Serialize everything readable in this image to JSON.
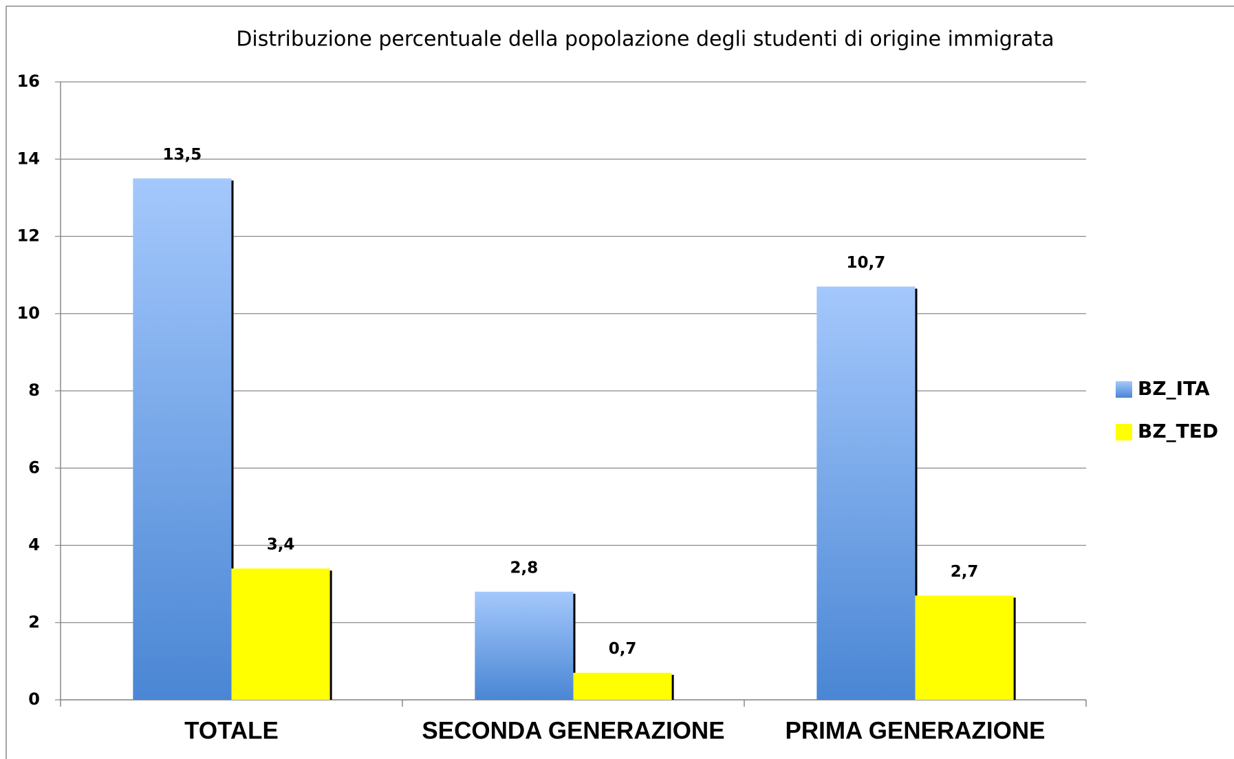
{
  "chart_data": {
    "type": "bar",
    "title": "Distribuzione percentuale della popolazione degli studenti di origine immigrata",
    "categories": [
      "TOTALE",
      "SECONDA GENERAZIONE",
      "PRIMA GENERAZIONE"
    ],
    "series": [
      {
        "name": "BZ_ITA",
        "color": "#6a9fe6",
        "values": [
          13.5,
          2.8,
          10.7
        ],
        "value_labels": [
          "13,5",
          "2,8",
          "10,7"
        ]
      },
      {
        "name": "BZ_TED",
        "color": "#ffff00",
        "values": [
          3.4,
          0.7,
          2.7
        ],
        "value_labels": [
          "3,4",
          "0,7",
          "2,7"
        ]
      }
    ],
    "ylim": [
      0,
      16
    ],
    "yticks": [
      0,
      2,
      4,
      6,
      8,
      10,
      12,
      14,
      16
    ],
    "grid": true,
    "legend": "right"
  }
}
